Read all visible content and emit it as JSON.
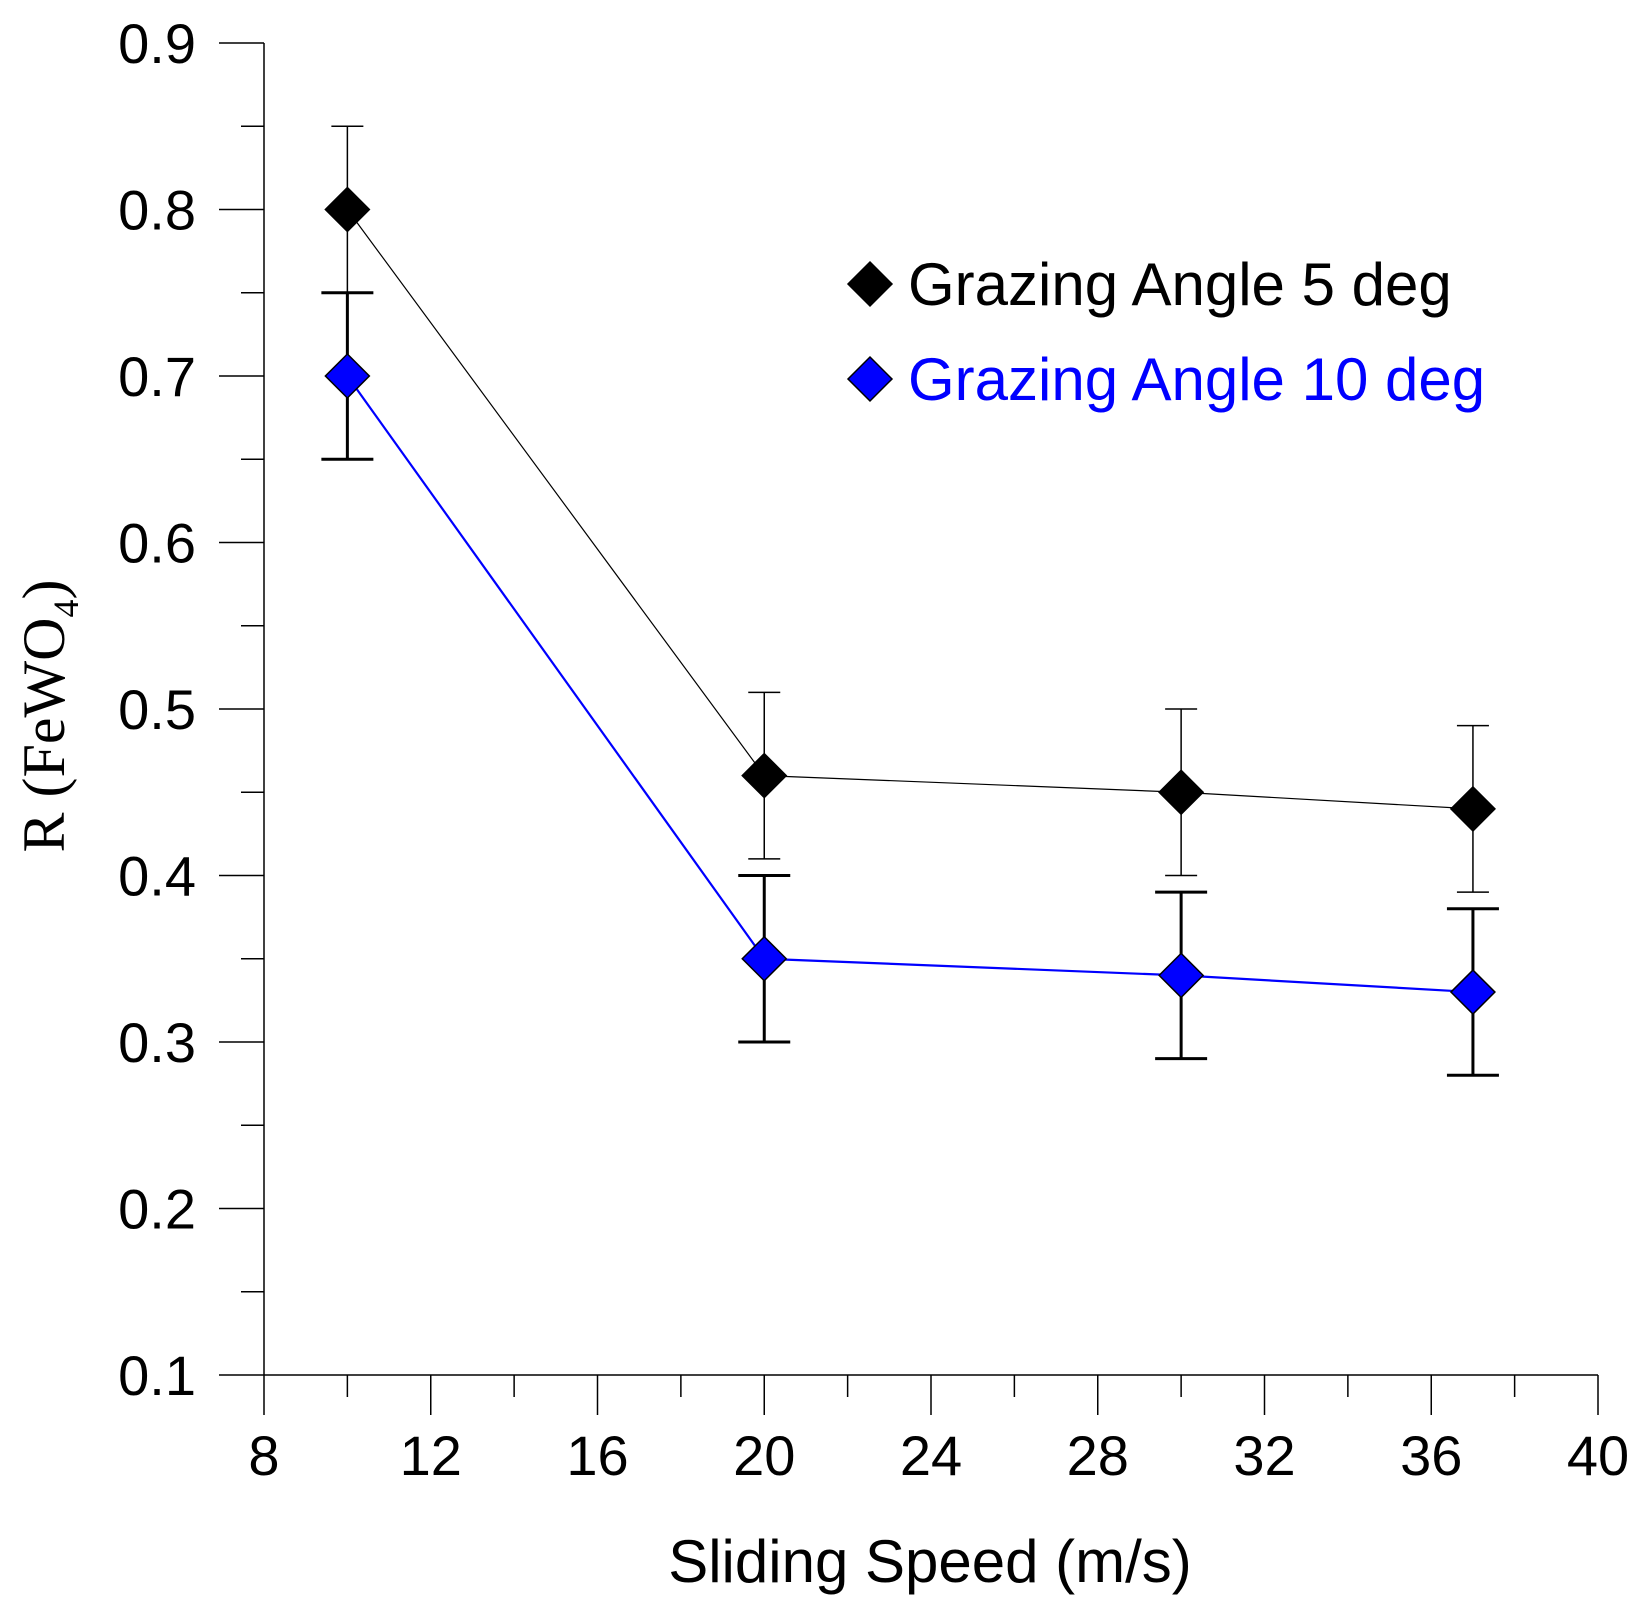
{
  "chart_data": {
    "type": "line",
    "title": "",
    "xlabel": "Sliding Speed (m/s)",
    "ylabel": {
      "main": "R (FeWO",
      "subscript": "4",
      "close": ")"
    },
    "xlim": [
      8,
      40
    ],
    "ylim": [
      0.1,
      0.9
    ],
    "x_ticks": [
      8,
      12,
      16,
      20,
      24,
      28,
      32,
      36,
      40
    ],
    "x_tick_labels": [
      "8",
      "12",
      "16",
      "20",
      "24",
      "28",
      "32",
      "36",
      "40"
    ],
    "y_ticks": [
      0.1,
      0.2,
      0.3,
      0.4,
      0.5,
      0.6,
      0.7,
      0.8,
      0.9
    ],
    "y_tick_labels": [
      "0.1",
      "0.2",
      "0.3",
      "0.4",
      "0.5",
      "0.6",
      "0.7",
      "0.8",
      "0.9"
    ],
    "grid": false,
    "legend_position": "top-right",
    "series": [
      {
        "name": "Grazing Angle 5 deg",
        "color": "#000000",
        "marker": "diamond",
        "x": [
          10,
          20,
          30,
          37
        ],
        "values": [
          0.8,
          0.46,
          0.45,
          0.44
        ],
        "error": [
          0.05,
          0.05,
          0.05,
          0.05
        ]
      },
      {
        "name": "Grazing Angle 10 deg",
        "color": "#0000ff",
        "marker": "diamond",
        "x": [
          10,
          20,
          30,
          37
        ],
        "values": [
          0.7,
          0.35,
          0.34,
          0.33
        ],
        "error": [
          0.05,
          0.05,
          0.05,
          0.05
        ]
      }
    ]
  }
}
